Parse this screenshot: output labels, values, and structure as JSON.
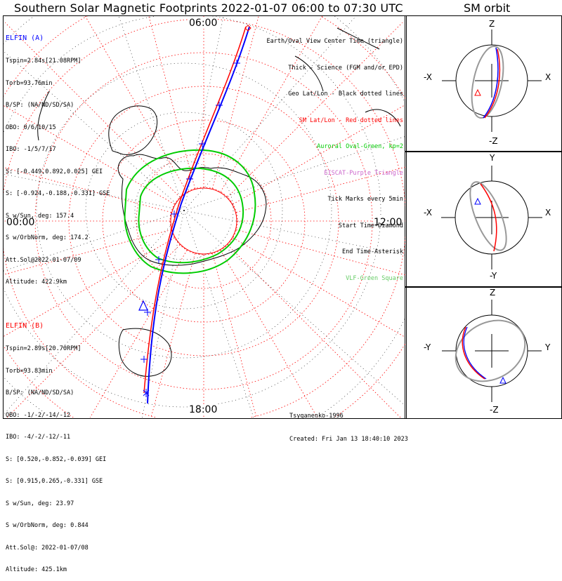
{
  "title": "Southern Solar Magnetic Footprints 2022-01-07 06:00 to 07:30 UTC",
  "orbit_title": "SM orbit",
  "colors": {
    "elfin_a": "#0000ff",
    "elfin_b": "#ff0000",
    "aurora": "#00cc00",
    "grid": "#ff0000",
    "gray": "#999999"
  },
  "elfin_a": {
    "name": "ELFIN (A)",
    "lines": [
      "Tspin=2.84s[21.08RPM]",
      "Torb=93.76min",
      "B/SP: (NA/ND/SD/SA)",
      "OBO: 0/6/10/15",
      "IBO: -1/5/7/17",
      "S: [-0.449,0.892,0.025] GEI",
      "S: [-0.924,-0.188,-0.331] GSE",
      "S w/Sun, deg: 157.4",
      "S w/OrbNorm, deg: 174.2",
      "Att.Sol@2022-01-07/09",
      "Altitude: 422.9km"
    ]
  },
  "elfin_b": {
    "name": "ELFIN (B)",
    "lines": [
      "Tspin=2.89s[20.70RPM]",
      "Torb=93.83min",
      "B/SP: (NA/ND/SD/SA)",
      "OBO: -1/-2/-14/-12",
      "IBO: -4/-2/-12/-11",
      "S: [0.520,-0.852,-0.039] GEI",
      "S: [0.915,0.265,-0.331] GSE",
      "S w/Sun, deg: 23.97",
      "S w/OrbNorm, deg: 0.844",
      "Att.Sol@: 2022-01-07/08",
      "Altitude: 425.1km"
    ]
  },
  "legend": [
    {
      "text": "Earth/Oval View Center Time (triangle)",
      "color": "#000000"
    },
    {
      "text": "Thick - Science (FGM and/or EPD)",
      "color": "#000000"
    },
    {
      "text": "Geo Lat/Lon - Black dotted lines",
      "color": "#000000"
    },
    {
      "text": "SM Lat/Lon - Red dotted lines",
      "color": "#ff0000"
    },
    {
      "text": "Auroral Oval-Green, kp=2",
      "color": "#00cc00"
    },
    {
      "text": "EISCAT-Purple Triangle",
      "color": "#cc66cc"
    },
    {
      "text": "Tick Marks every 5min",
      "color": "#000000"
    },
    {
      "text": "Start Time-Diamond",
      "color": "#000000"
    },
    {
      "text": "End Time-Asterisk",
      "color": "#000000"
    },
    {
      "text": "VLF-Green Square",
      "color": "#66cc66"
    }
  ],
  "map_labels": {
    "top": "06:00",
    "right": "12:00",
    "bottom": "18:00",
    "left": "00:00"
  },
  "credit": [
    "Tsyganenko-1996",
    "Created: Fri Jan 13 18:40:10 2023"
  ],
  "orbit_panels": [
    {
      "top": "Z",
      "bottom": "-Z",
      "left": "-X",
      "right": "X"
    },
    {
      "top": "Y",
      "bottom": "-Y",
      "left": "-X",
      "right": "X"
    },
    {
      "top": "Z",
      "bottom": "-Z",
      "left": "-Y",
      "right": "Y"
    }
  ],
  "chart_data": {
    "type": "polar-map",
    "projection": "south-polar, magnetic local time",
    "mlt_labels": [
      "00:00",
      "06:00",
      "12:00",
      "18:00"
    ],
    "series": [
      {
        "name": "ELFIN (A)",
        "color": "#0000ff"
      },
      {
        "name": "ELFIN (B)",
        "color": "#ff0000"
      }
    ]
  }
}
